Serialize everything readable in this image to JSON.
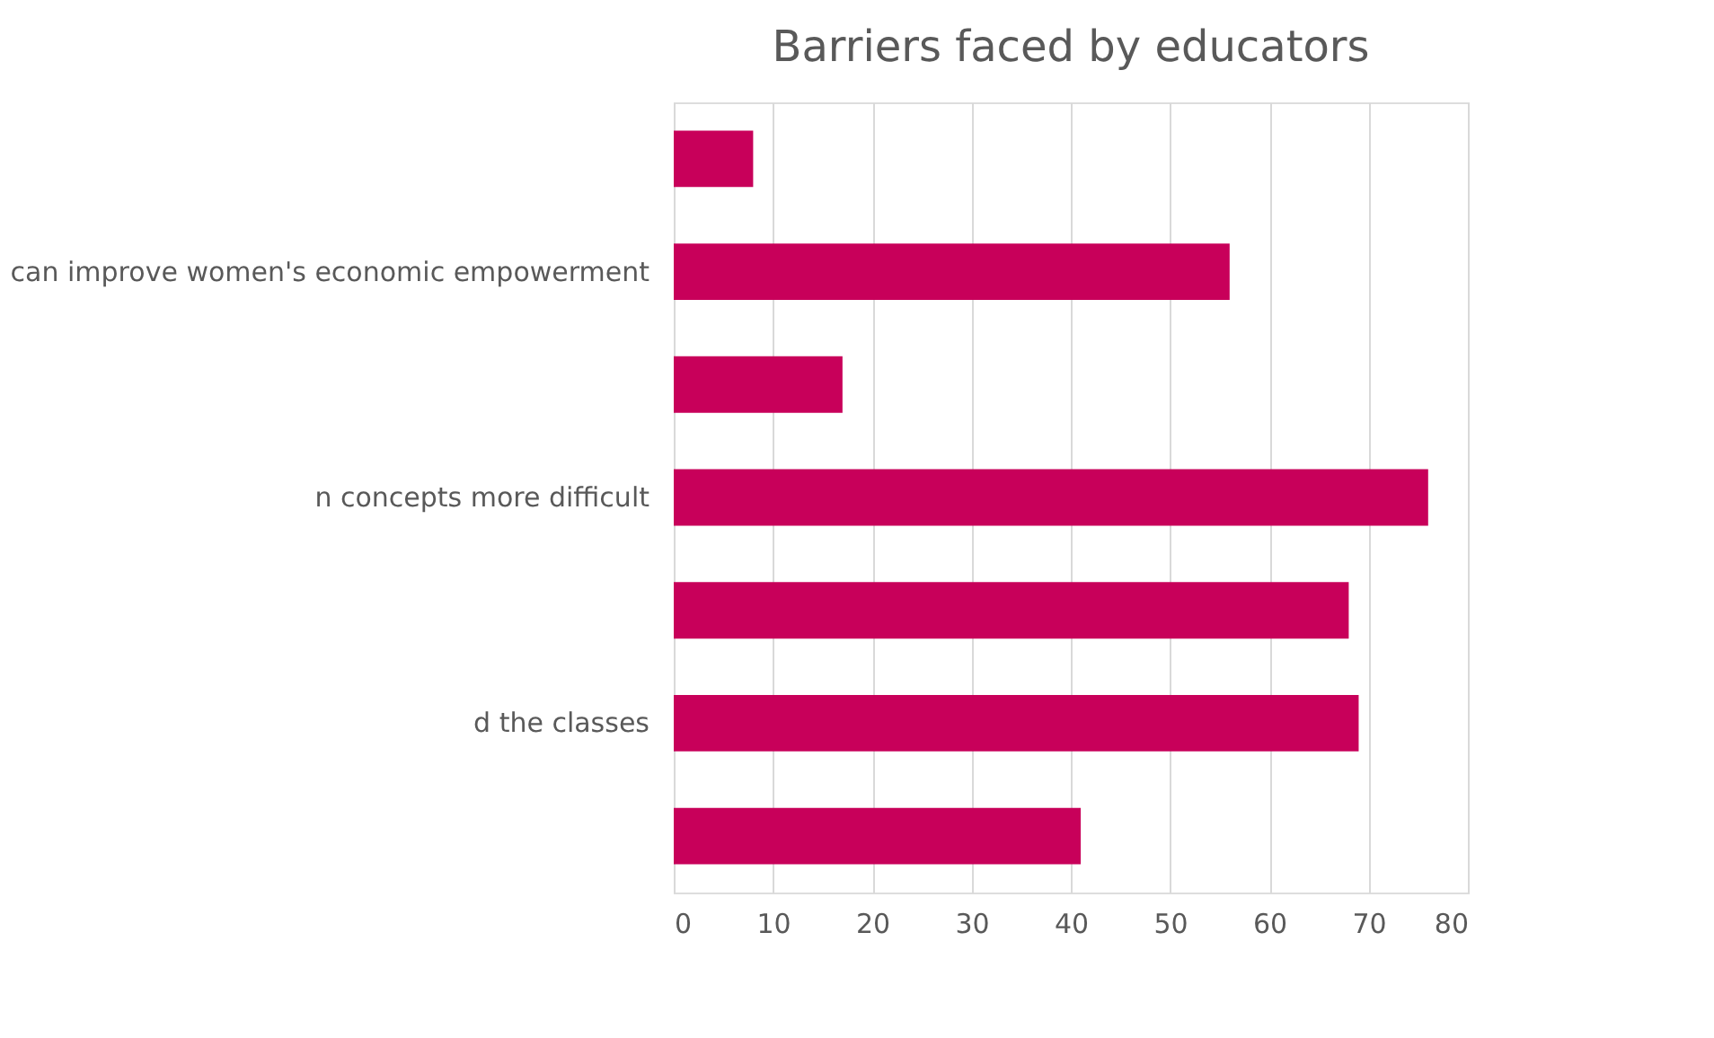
{
  "chart_data": {
    "type": "bar",
    "orientation": "horizontal",
    "title": "Barriers faced by educators",
    "categories": [
      null,
      "can improve women's economic empowerment",
      null,
      "n concepts more difficult",
      null,
      "d the classes",
      null
    ],
    "values": [
      8,
      56,
      17,
      76,
      68,
      69,
      41
    ],
    "color": "#c8005a",
    "xlim": [
      0,
      80
    ],
    "xticks": [
      0,
      10,
      20,
      30,
      40,
      50,
      60,
      70,
      80
    ],
    "grid": "x"
  }
}
